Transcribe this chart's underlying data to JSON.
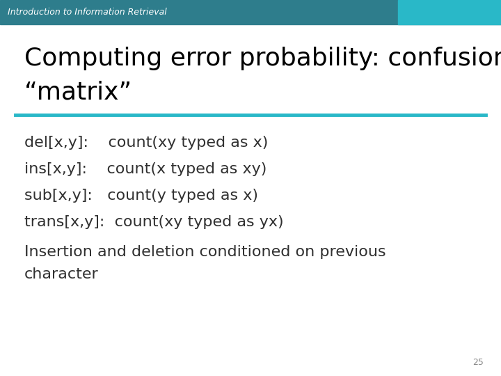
{
  "header_text": "Introduction to Information Retrieval",
  "header_bg": "#2E7D8C",
  "header_right_rect_color": "#29B8C8",
  "title_line1": "Computing error probability: confusion",
  "title_line2": "“matrix”",
  "divider_color": "#29B8C8",
  "body_lines": [
    "del[x,y]:    count(xy typed as x)",
    "ins[x,y]:    count(x typed as xy)",
    "sub[x,y]:   count(y typed as x)",
    "trans[x,y]:  count(xy typed as yx)"
  ],
  "note_line1": "Insertion and deletion conditioned on previous",
  "note_line2": "character",
  "page_number": "25",
  "bg_color": "#FFFFFF",
  "title_color": "#000000",
  "body_color": "#303030",
  "header_text_color": "#FFFFFF",
  "title_fontsize": 26,
  "body_fontsize": 16,
  "note_fontsize": 16,
  "header_fontsize": 9,
  "page_fontsize": 9
}
